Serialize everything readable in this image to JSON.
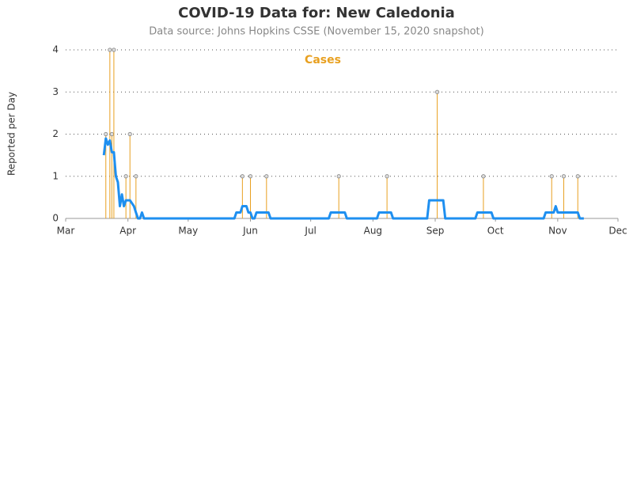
{
  "chart_data": {
    "type": "line",
    "title": "COVID-19 Data for: New Caledonia",
    "subtitle": "Data source: Johns Hopkins CSSE (November 15, 2020 snapshot)",
    "y_label": "Reported per Day",
    "xlim": [
      61,
      336
    ],
    "xticks": [
      {
        "value": 61,
        "label": "Mar"
      },
      {
        "value": 92,
        "label": "Apr"
      },
      {
        "value": 122,
        "label": "May"
      },
      {
        "value": 153,
        "label": "Jun"
      },
      {
        "value": 183,
        "label": "Jul"
      },
      {
        "value": 214,
        "label": "Aug"
      },
      {
        "value": 245,
        "label": "Sep"
      },
      {
        "value": 275,
        "label": "Oct"
      },
      {
        "value": 306,
        "label": "Nov"
      },
      {
        "value": 336,
        "label": "Dec"
      }
    ],
    "ylim": [
      0,
      4
    ],
    "yticks": [
      0,
      1,
      2,
      3,
      4
    ],
    "grid": true,
    "series": [
      {
        "name": "Cases",
        "color": "#e8a020",
        "style": "stem",
        "x": [
          81,
          83,
          84,
          85,
          91,
          93,
          96,
          149,
          153,
          161,
          197,
          221,
          246,
          269,
          303,
          309,
          316
        ],
        "values": [
          2,
          4,
          2,
          4,
          1,
          2,
          1,
          1,
          1,
          1,
          1,
          1,
          3,
          1,
          1,
          1,
          1
        ]
      },
      {
        "color": "#1e8ff0",
        "style": "line",
        "x": [
          80,
          81,
          82,
          83,
          84,
          85,
          86,
          87,
          88,
          89,
          90,
          91,
          93,
          94,
          95,
          96,
          97,
          98,
          99,
          100,
          145,
          146,
          148,
          149,
          151,
          152,
          153,
          154,
          155,
          156,
          162,
          163,
          192,
          193,
          200,
          201,
          216,
          217,
          223,
          224,
          241,
          242,
          249,
          250,
          265,
          266,
          273,
          274,
          299,
          300,
          304,
          305,
          306,
          316,
          317,
          319
        ],
        "values": [
          1.5,
          1.9,
          1.75,
          1.85,
          1.57,
          1.57,
          1.0,
          0.86,
          0.29,
          0.57,
          0.29,
          0.43,
          0.43,
          0.36,
          0.29,
          0.14,
          0,
          0,
          0.14,
          0,
          0,
          0.14,
          0.14,
          0.29,
          0.29,
          0.14,
          0.14,
          0,
          0,
          0.14,
          0.14,
          0,
          0,
          0.14,
          0.14,
          0,
          0,
          0.14,
          0.14,
          0,
          0,
          0.43,
          0.43,
          0,
          0,
          0.14,
          0.14,
          0,
          0,
          0.14,
          0.14,
          0.29,
          0.14,
          0.14,
          0,
          0
        ]
      }
    ]
  }
}
